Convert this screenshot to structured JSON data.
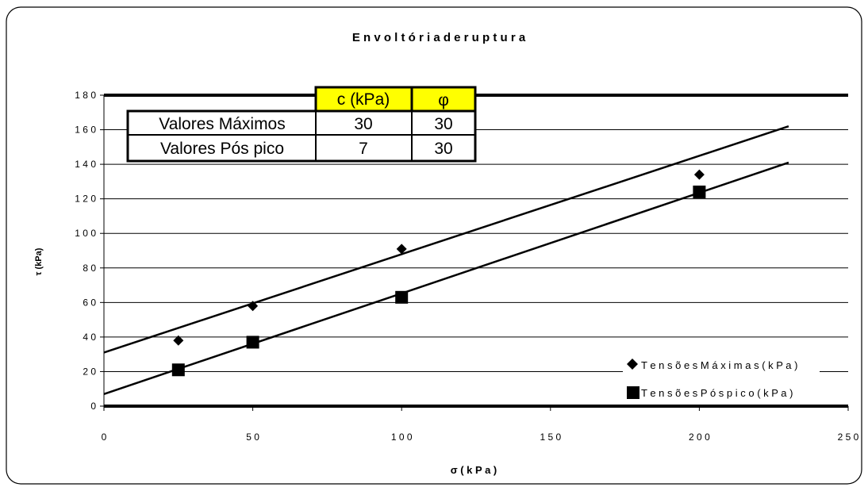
{
  "chart_data": {
    "type": "scatter",
    "title": "E n v o l t ó r i a   d e   r u p t u r a",
    "xlabel": "σ  ( k P a )",
    "ylabel": "τ  (kPa)",
    "xlim": [
      0,
      250
    ],
    "ylim": [
      0,
      180
    ],
    "x_ticks": [
      0,
      50,
      100,
      150,
      200,
      250
    ],
    "x_tick_labels": [
      "0",
      "5 0",
      "1 0 0",
      "1 5 0",
      "2 0 0",
      "2 5 0"
    ],
    "y_ticks": [
      0,
      20,
      40,
      60,
      80,
      100,
      120,
      140,
      160,
      180
    ],
    "y_tick_labels": [
      "0",
      "2 0",
      "4 0",
      "6 0",
      "8 0",
      "1 0 0",
      "1 2 0",
      "1 4 0",
      "1 6 0",
      "1 8 0"
    ],
    "grid": "horizontal",
    "legend_position": "bottom-right",
    "series": [
      {
        "name": "T e n s õ e s   M á x i m a s   ( k P a )",
        "marker": "diamond",
        "color": "#000000",
        "x": [
          25,
          50,
          100,
          200
        ],
        "y": [
          38,
          58,
          91,
          134
        ]
      },
      {
        "name": "T e n s õ e s   P ó s   p i c o   ( k P a )",
        "marker": "square",
        "color": "#000000",
        "x": [
          25,
          50,
          100,
          200
        ],
        "y": [
          21,
          37,
          63,
          124
        ]
      }
    ],
    "trendlines": [
      {
        "series": 0,
        "x": [
          0,
          230
        ],
        "y": [
          31,
          162
        ]
      },
      {
        "series": 1,
        "x": [
          0,
          230
        ],
        "y": [
          7,
          141
        ]
      }
    ],
    "table": {
      "headers": [
        "",
        "c (kPa)",
        "φ"
      ],
      "rows": [
        [
          "Valores Máximos",
          "30",
          "30"
        ],
        [
          "Valores Pós pico",
          "7",
          "30"
        ]
      ],
      "header_color": "#ffff00"
    }
  }
}
